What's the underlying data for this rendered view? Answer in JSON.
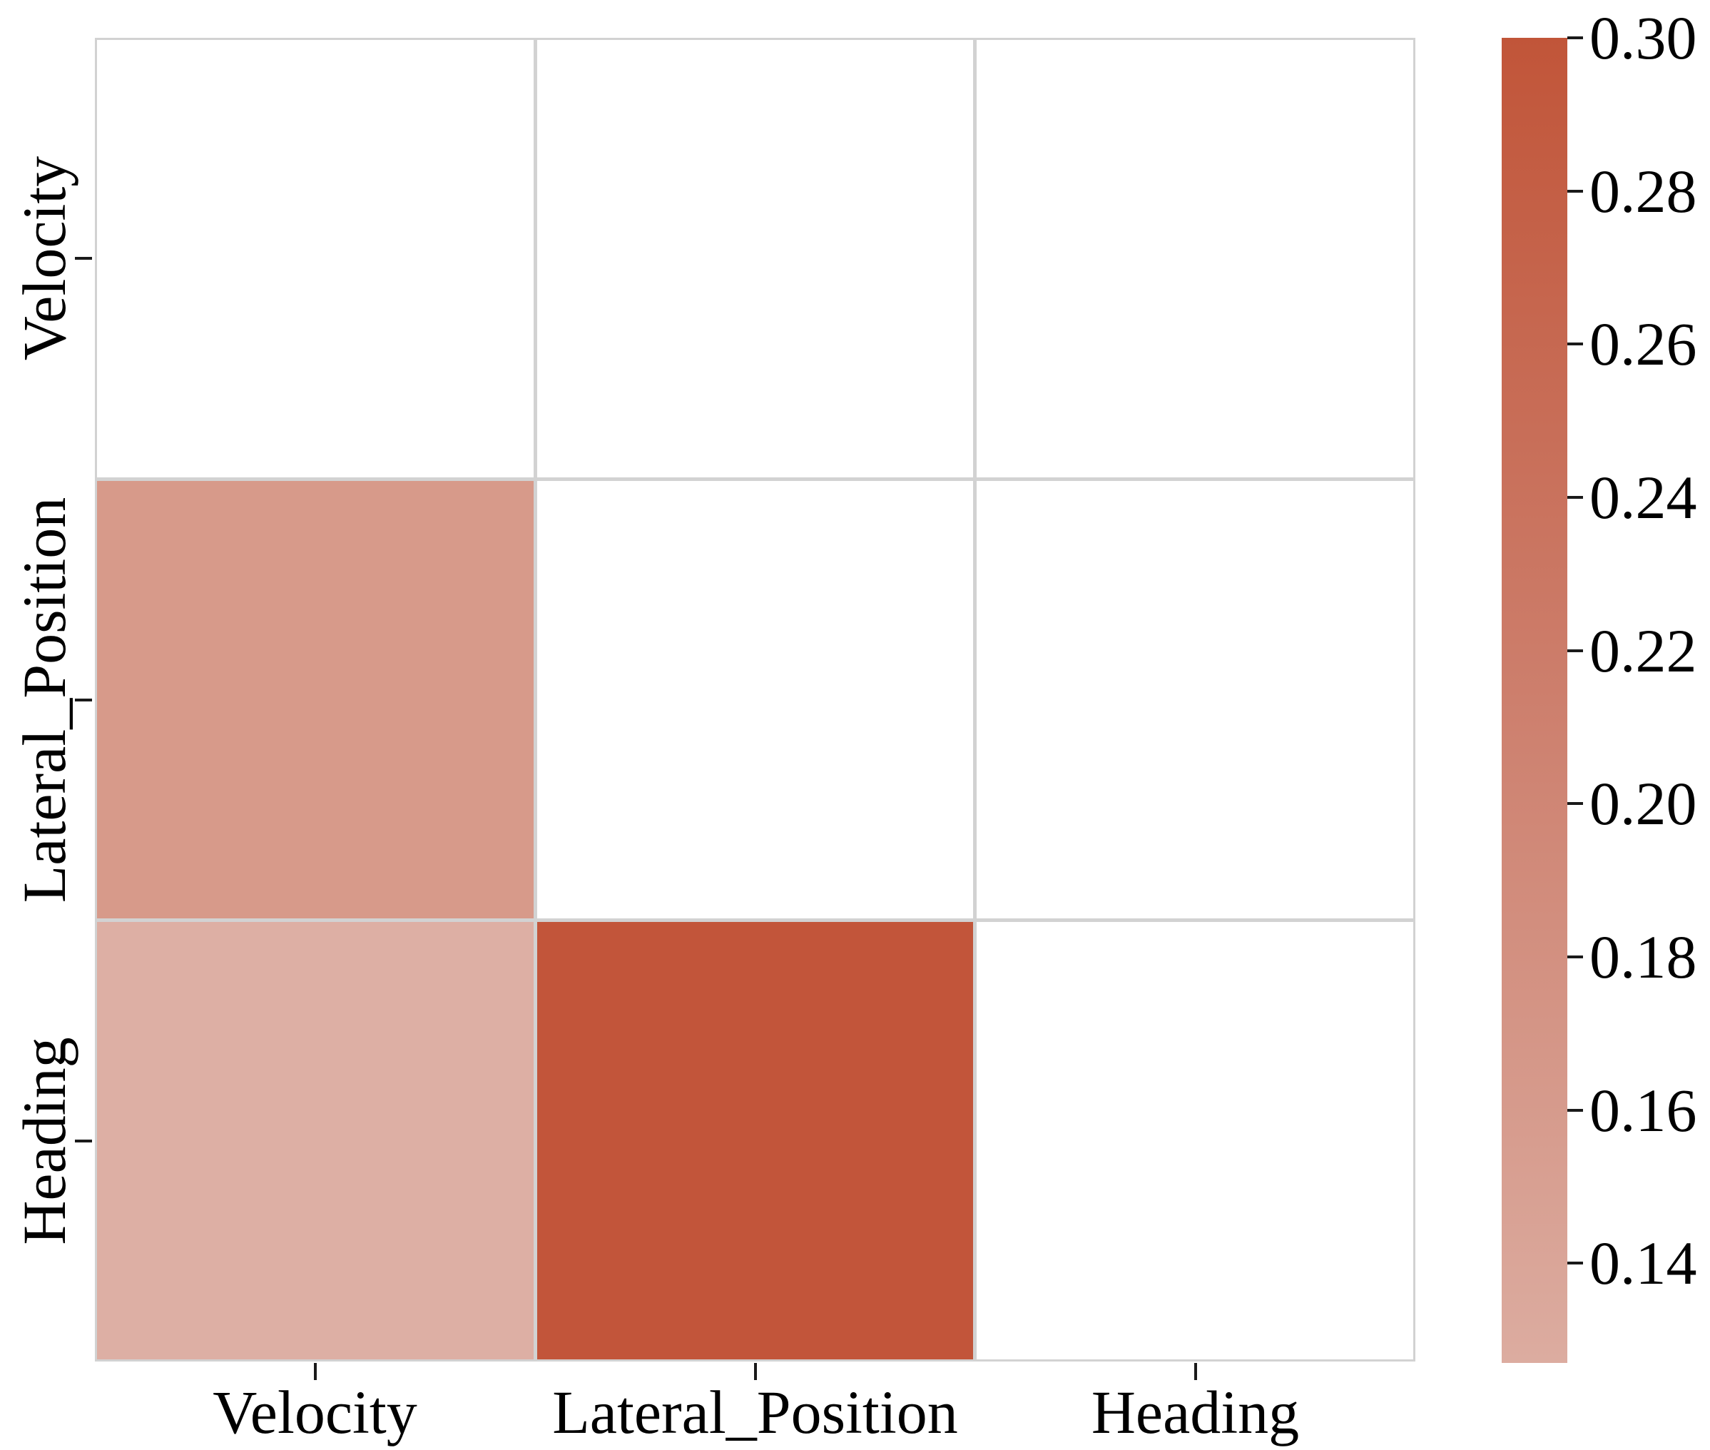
{
  "figure": {
    "background": "#ffffff",
    "grid_line_color": "#d2d2d2",
    "tick_color": "#1a1a1a",
    "text_color": "#000000"
  },
  "chart_data": {
    "type": "heatmap",
    "title": "",
    "xlabel": "",
    "ylabel": "",
    "x_categories": [
      "Velocity",
      "Lateral_Position",
      "Heading"
    ],
    "y_categories": [
      "Velocity",
      "Lateral_Position",
      "Heading"
    ],
    "matrix": [
      [
        null,
        null,
        null
      ],
      [
        0.17,
        null,
        null
      ],
      [
        0.13,
        0.3,
        null
      ]
    ],
    "mask": "upper-triangle-and-diagonal-blank",
    "cell_colors": [
      [
        "#ffffff",
        "#ffffff",
        "#ffffff"
      ],
      [
        "#d79a8a",
        "#ffffff",
        "#ffffff"
      ],
      [
        "#ddafa4",
        "#c2553a",
        "#ffffff"
      ]
    ],
    "grid": true,
    "colormap": {
      "low": "#dcaca0",
      "mid": "#cd7f6d",
      "high": "#c15539"
    },
    "colorbar": {
      "position": "right",
      "vmin": 0.127,
      "vmax": 0.3,
      "ticks": [
        {
          "label": "0.30",
          "value": 0.3
        },
        {
          "label": "0.28",
          "value": 0.28
        },
        {
          "label": "0.26",
          "value": 0.26
        },
        {
          "label": "0.24",
          "value": 0.24
        },
        {
          "label": "0.22",
          "value": 0.22
        },
        {
          "label": "0.20",
          "value": 0.2
        },
        {
          "label": "0.18",
          "value": 0.18
        },
        {
          "label": "0.16",
          "value": 0.16
        },
        {
          "label": "0.14",
          "value": 0.14
        }
      ]
    }
  }
}
